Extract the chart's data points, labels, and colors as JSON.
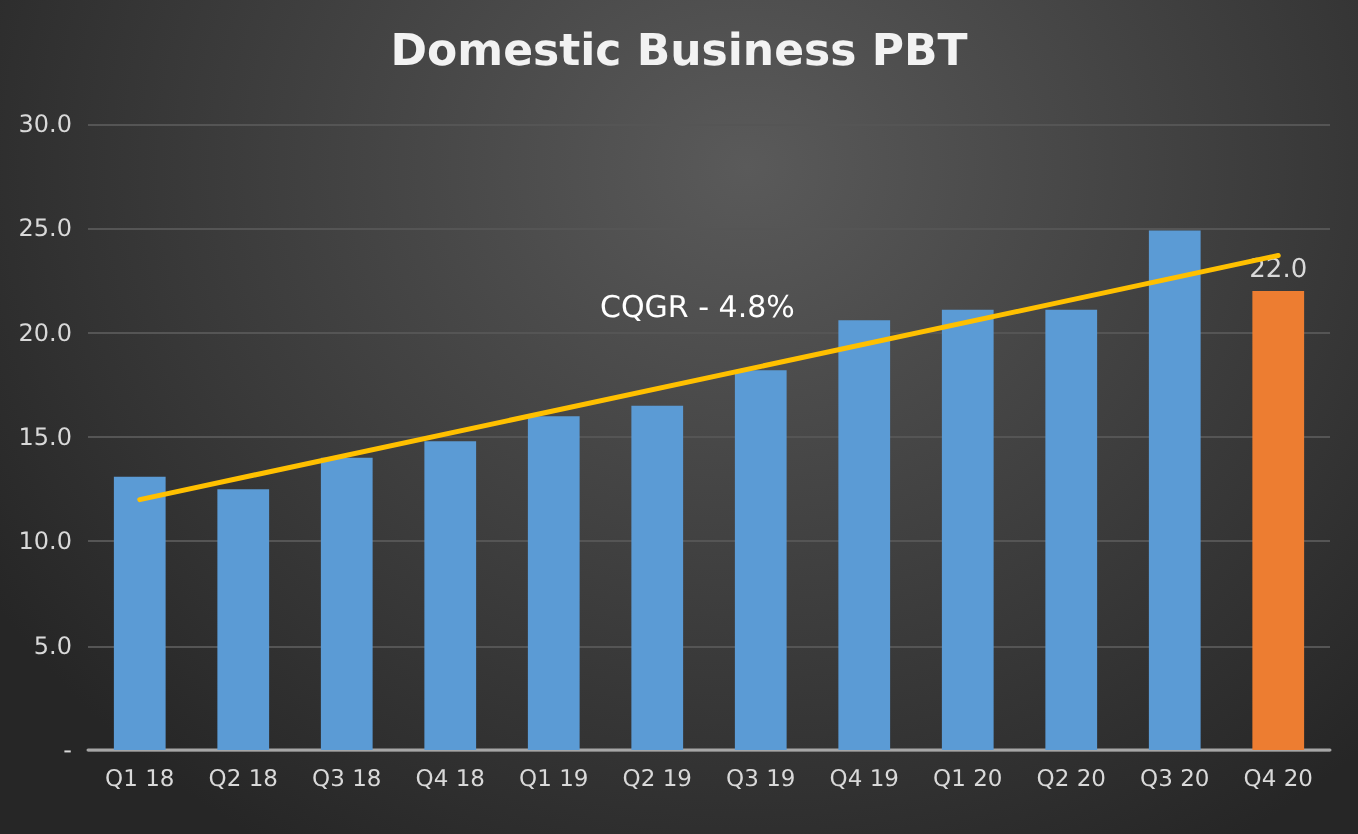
{
  "chart_data": {
    "type": "bar",
    "title": "Domestic Business PBT",
    "categories": [
      "Q1 18",
      "Q2 18",
      "Q3 18",
      "Q4 18",
      "Q1 19",
      "Q2 19",
      "Q3 19",
      "Q4 19",
      "Q1 20",
      "Q2 20",
      "Q3 20",
      "Q4 20"
    ],
    "series": [
      {
        "values": [
          13.1,
          12.5,
          14.0,
          14.8,
          16.0,
          16.5,
          18.2,
          20.6,
          21.1,
          21.1,
          24.9,
          22.0
        ],
        "colors": [
          "#5b9bd5",
          "#5b9bd5",
          "#5b9bd5",
          "#5b9bd5",
          "#5b9bd5",
          "#5b9bd5",
          "#5b9bd5",
          "#5b9bd5",
          "#5b9bd5",
          "#5b9bd5",
          "#5b9bd5",
          "#ed7d31"
        ],
        "value_labels": [
          null,
          null,
          null,
          null,
          null,
          null,
          null,
          null,
          null,
          null,
          null,
          "22.0"
        ]
      },
      {
        "type": "line",
        "x": [
          "Q1 18",
          "Q4 20"
        ],
        "values": [
          12.0,
          23.7
        ],
        "color": "#ffc000",
        "marker": "none",
        "line_style": "solid"
      }
    ],
    "ylim": [
      0,
      30
    ],
    "yticks": [
      {
        "value": 0,
        "label": "-"
      },
      {
        "value": 5,
        "label": "5.0"
      },
      {
        "value": 10,
        "label": "10.0"
      },
      {
        "value": 15,
        "label": "15.0"
      },
      {
        "value": 20,
        "label": "20.0"
      },
      {
        "value": 25,
        "label": "25.0"
      },
      {
        "value": 30,
        "label": "30.0"
      }
    ],
    "grid": "y",
    "annotations": [
      "CQGR - 4.8%"
    ]
  }
}
